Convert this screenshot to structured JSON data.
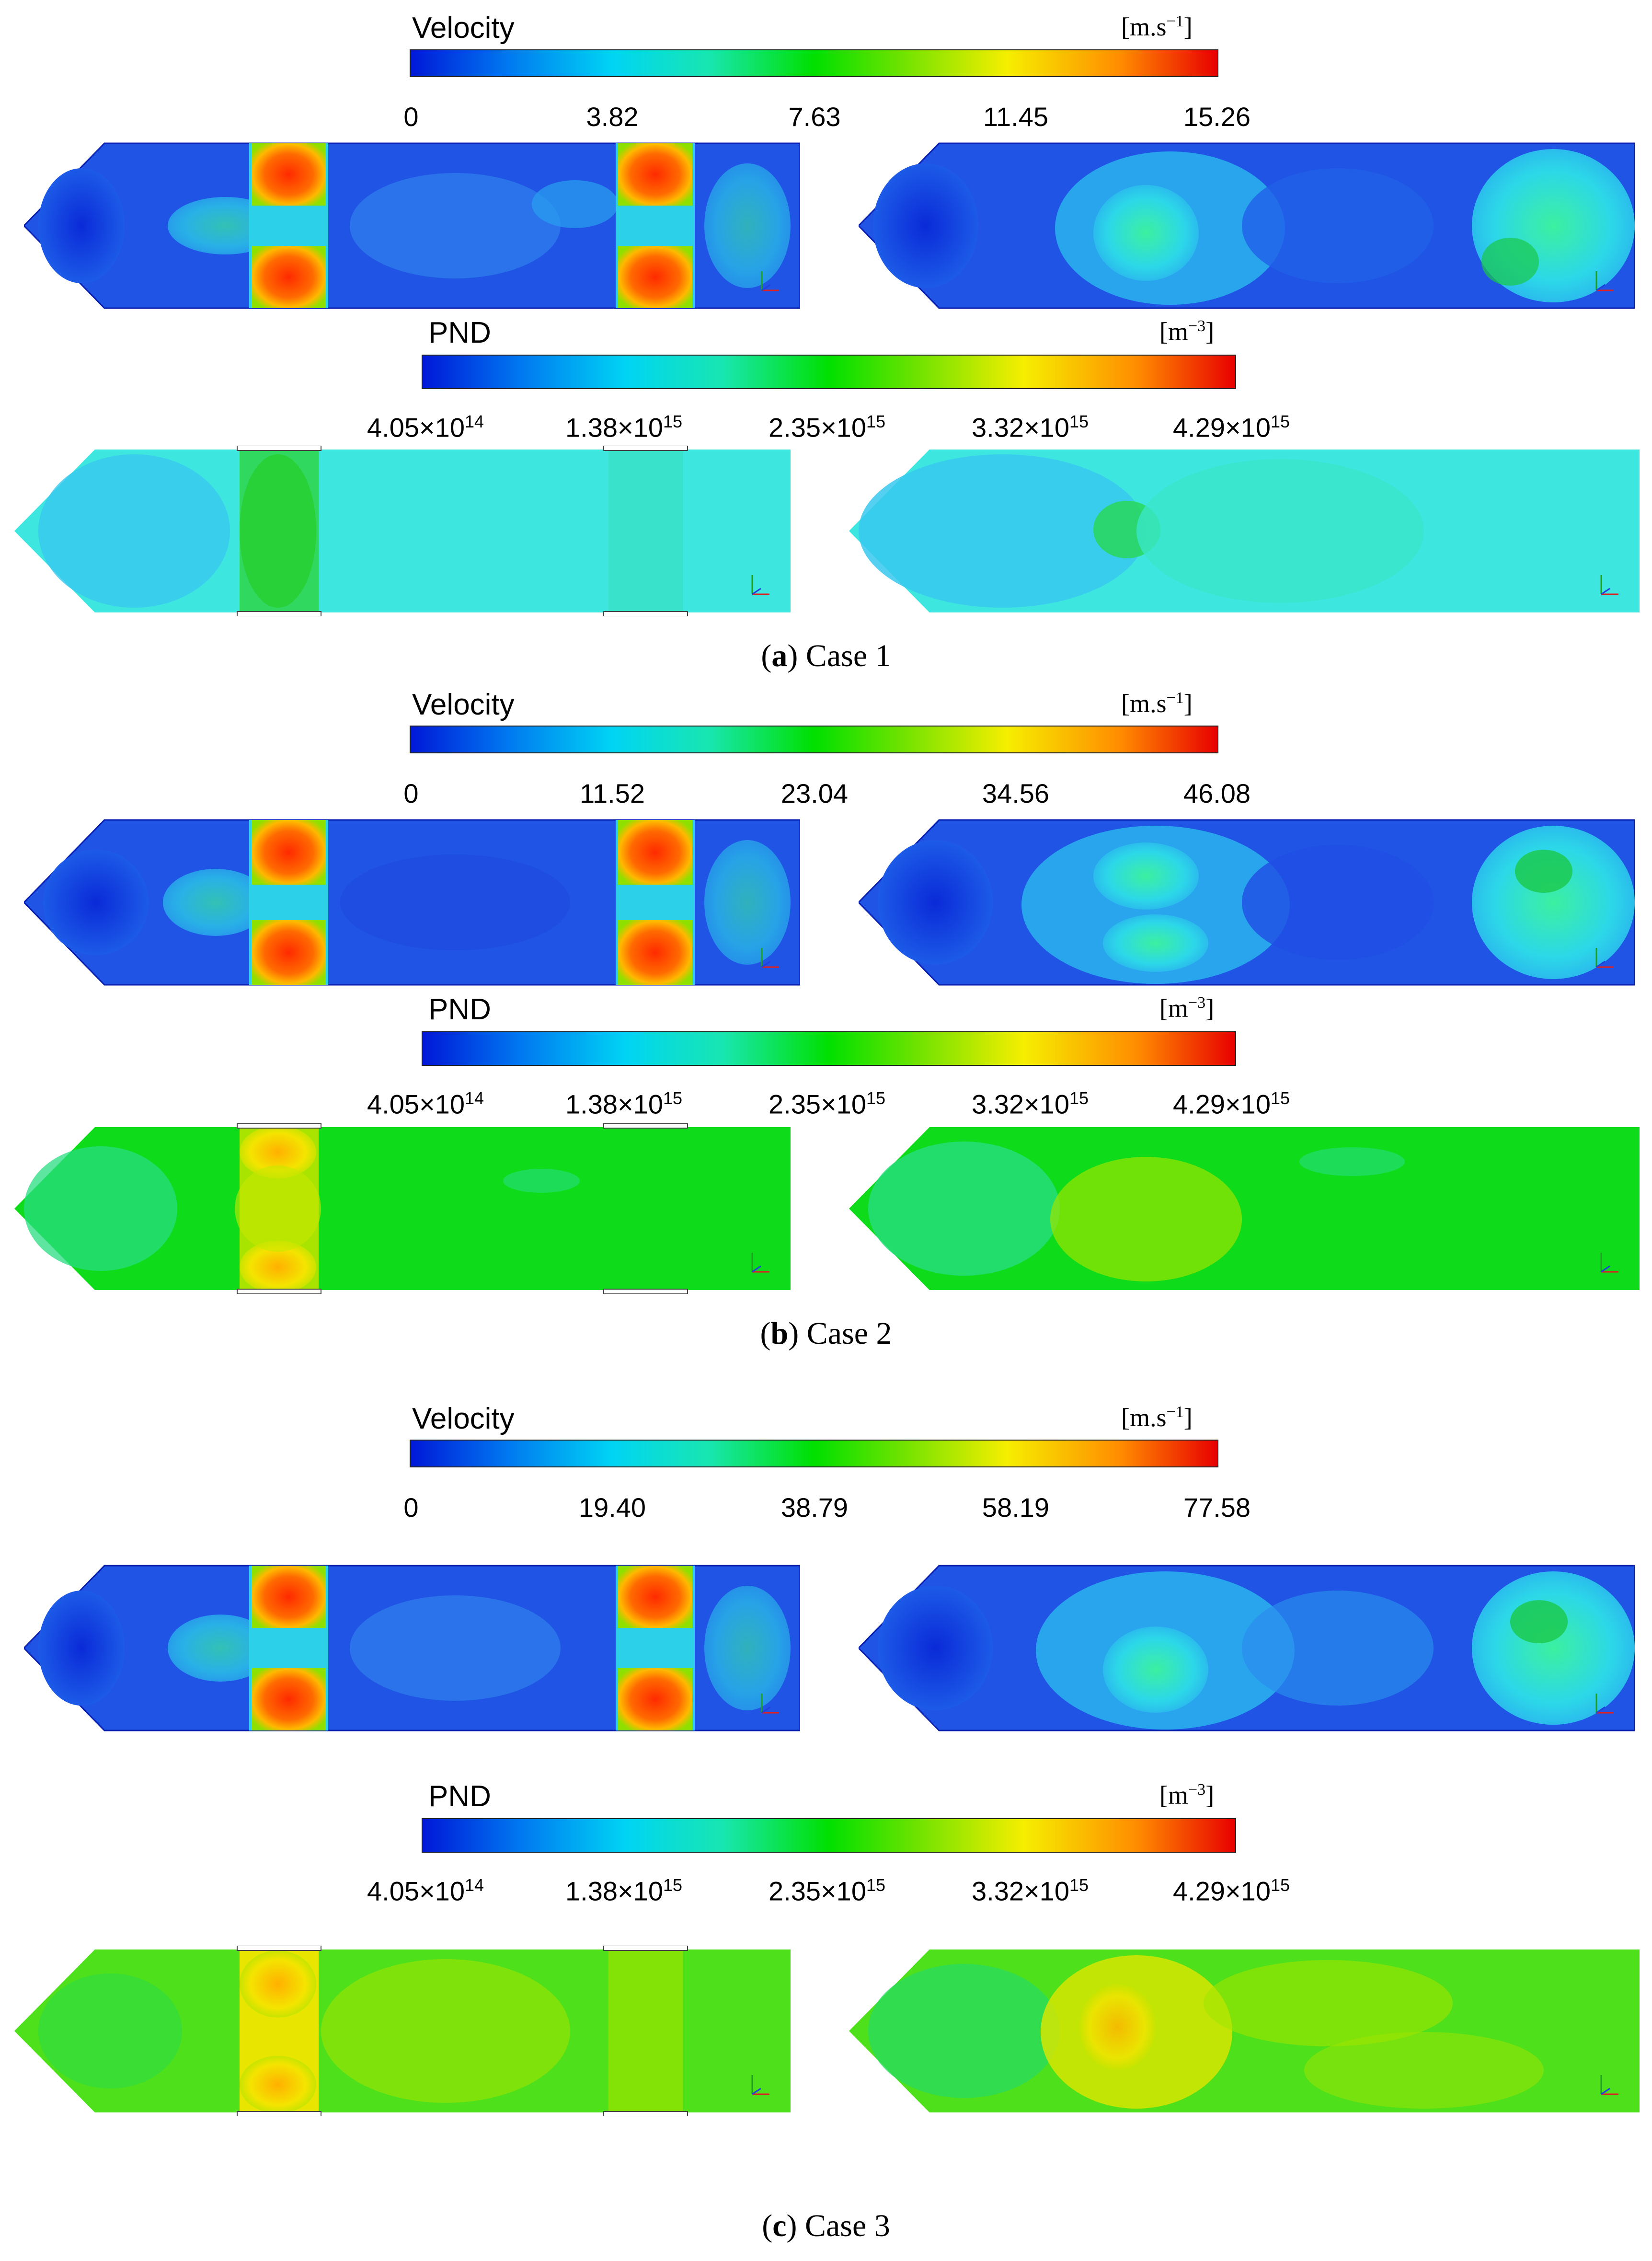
{
  "figure": {
    "case1": {
      "velocity": {
        "title": "Velocity",
        "unit": "[m.s",
        "unit_exp": "−1",
        "unit_close": "]",
        "ticks": [
          "0",
          "3.82",
          "7.63",
          "11.45",
          "15.26"
        ]
      },
      "pnd": {
        "title": "PND",
        "unit": "[m",
        "unit_exp": "−3",
        "unit_close": "]"
      },
      "caption": {
        "label": "a",
        "text": "Case 1"
      }
    },
    "case2": {
      "velocity": {
        "title": "Velocity",
        "unit": "[m.s",
        "unit_exp": "−1",
        "unit_close": "]",
        "ticks": [
          "0",
          "11.52",
          "23.04",
          "34.56",
          "46.08"
        ]
      },
      "pnd": {
        "title": "PND",
        "unit": "[m",
        "unit_exp": "−3",
        "unit_close": "]"
      },
      "caption": {
        "label": "b",
        "text": "Case 2"
      }
    },
    "case3": {
      "velocity": {
        "title": "Velocity",
        "unit": "[m.s",
        "unit_exp": "−1",
        "unit_close": "]",
        "ticks": [
          "0",
          "19.40",
          "38.79",
          "58.19",
          "77.58"
        ]
      },
      "pnd": {
        "title": "PND",
        "unit": "[m",
        "unit_exp": "−3",
        "unit_close": "]"
      },
      "caption": {
        "label": "c",
        "text": "Case 3"
      }
    },
    "pnd_ticks": [
      {
        "mantissa": "4.05×10",
        "exp": "14"
      },
      {
        "mantissa": "1.38×10",
        "exp": "15"
      },
      {
        "mantissa": "2.35×10",
        "exp": "15"
      },
      {
        "mantissa": "3.32×10",
        "exp": "15"
      },
      {
        "mantissa": "4.29×10",
        "exp": "15"
      }
    ]
  },
  "colors": {
    "vel_low": "#1e52e6",
    "vel_mid": "#2eaaf0",
    "vel_hot": "#e84a0a",
    "pnd_c1": "#3ee6e0",
    "pnd_c2": "#0edc1a",
    "pnd_c3": "#4ee01a"
  },
  "icons": [
    "axis-triad-icon"
  ]
}
